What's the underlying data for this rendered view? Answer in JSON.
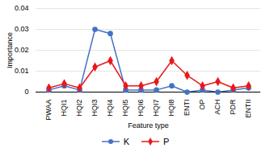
{
  "chart_data": {
    "type": "line",
    "categories": [
      "PWAA",
      "HQI1",
      "HQI2",
      "HQI3",
      "HQI4",
      "HQI5",
      "HQI6",
      "HQI7",
      "HQI8",
      "ENTI",
      "OP",
      "ACH",
      "PDR",
      "ENTII"
    ],
    "series": [
      {
        "name": "K",
        "color": "#4472C4",
        "marker": "circle",
        "values": [
          0.001,
          0.003,
          0.001,
          0.03,
          0.028,
          0.001,
          0.001,
          0.001,
          0.003,
          0.0,
          0.001,
          0.0,
          0.001,
          0.002
        ]
      },
      {
        "name": "P",
        "color": "#E8191A",
        "marker": "diamond",
        "values": [
          0.002,
          0.004,
          0.002,
          0.012,
          0.015,
          0.003,
          0.003,
          0.005,
          0.015,
          0.008,
          0.003,
          0.005,
          0.002,
          0.003
        ]
      }
    ],
    "xlabel": "Feature type",
    "ylabel": "Importance",
    "ylim": [
      0,
      0.04
    ],
    "yticks": [
      0,
      0.01,
      0.02,
      0.03,
      0.04
    ],
    "grid": true,
    "legend": "bottom"
  }
}
